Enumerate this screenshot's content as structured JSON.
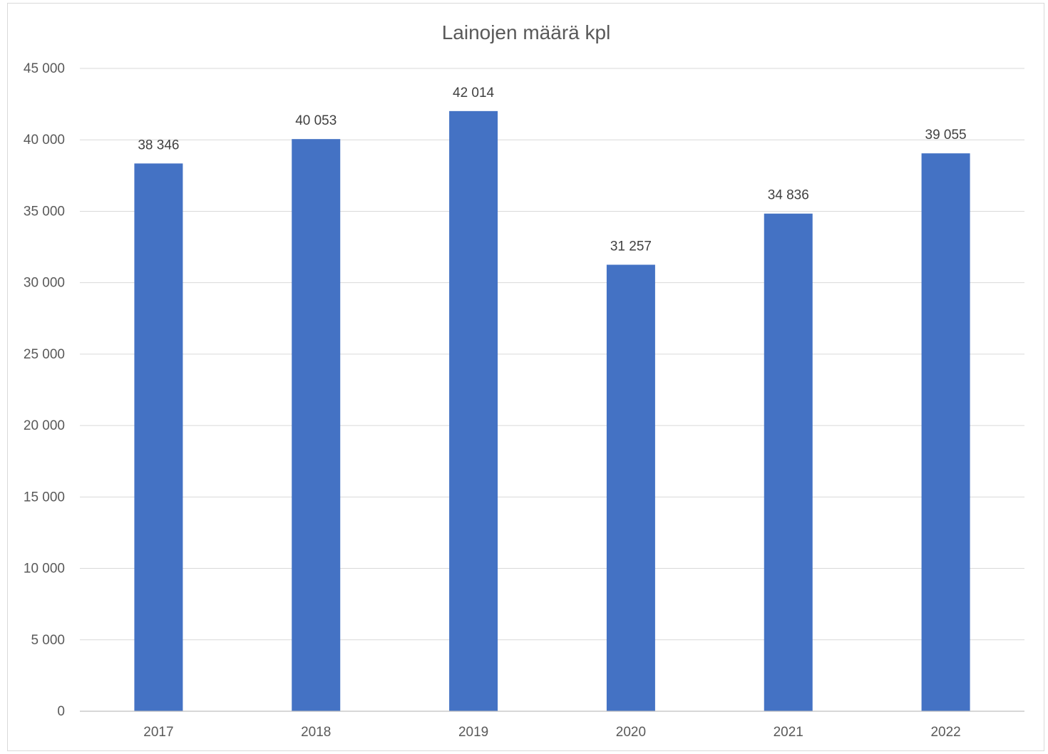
{
  "chart_data": {
    "type": "bar",
    "title": "Lainojen määrä kpl",
    "xlabel": "",
    "ylabel": "",
    "categories": [
      "2017",
      "2018",
      "2019",
      "2020",
      "2021",
      "2022"
    ],
    "values": [
      38346,
      40053,
      42014,
      31257,
      34836,
      39055
    ],
    "data_labels": [
      "38 346",
      "40 053",
      "42 014",
      "31 257",
      "34 836",
      "39 055"
    ],
    "ylim": [
      0,
      45000
    ],
    "yticks": [
      0,
      5000,
      10000,
      15000,
      20000,
      25000,
      30000,
      35000,
      40000,
      45000
    ],
    "ytick_labels": [
      "0",
      "5 000",
      "10 000",
      "15 000",
      "20 000",
      "25 000",
      "30 000",
      "35 000",
      "40 000",
      "45 000"
    ],
    "grid": true,
    "legend": "none",
    "colors": {
      "bar": "#4472c4",
      "gridline": "#d9d9d9",
      "text": "#595959"
    }
  }
}
